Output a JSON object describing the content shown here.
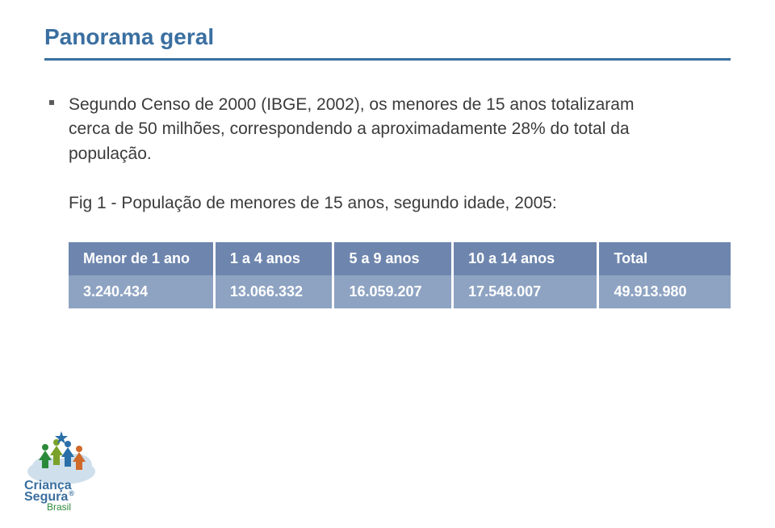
{
  "title": "Panorama geral",
  "bullet": "Segundo Censo de 2000 (IBGE, 2002), os menores de 15 anos totalizaram cerca de 50 milhões, correspondendo a aproximadamente 28% do total da população.",
  "caption": "Fig 1 - População de menores de 15 anos, segundo idade, 2005:",
  "table": {
    "header_bg": "#6e86ae",
    "row_bg": "#8ea3c2",
    "header_color": "#ffffff",
    "cell_color": "#ffffff",
    "columns": [
      "Menor de 1 ano",
      "1 a 4 anos",
      "5 a 9 anos",
      "10 a 14 anos",
      "Total"
    ],
    "rows": [
      [
        "3.240.434",
        "13.066.332",
        "16.059.207",
        "17.548.007",
        "49.913.980"
      ]
    ],
    "col_widths": [
      "22%",
      "18%",
      "18%",
      "22%",
      "20%"
    ],
    "header_fontsize": 18,
    "cell_fontsize": 18
  },
  "logo": {
    "line1": "Criança",
    "line2": "Segura",
    "country": "Brasil",
    "text_color": "#3a6fa0",
    "country_color": "#2a8a3a",
    "star_color": "#2a6fa8",
    "figure_colors": [
      "#2a8a3a",
      "#7aa22a",
      "#2a6fa8",
      "#d06a2a"
    ],
    "cloud_color": "#cfe0ec"
  },
  "colors": {
    "title": "#3a6fa0",
    "underline": "#3a6fa0",
    "body_text": "#3b3b3b",
    "background": "#ffffff"
  }
}
